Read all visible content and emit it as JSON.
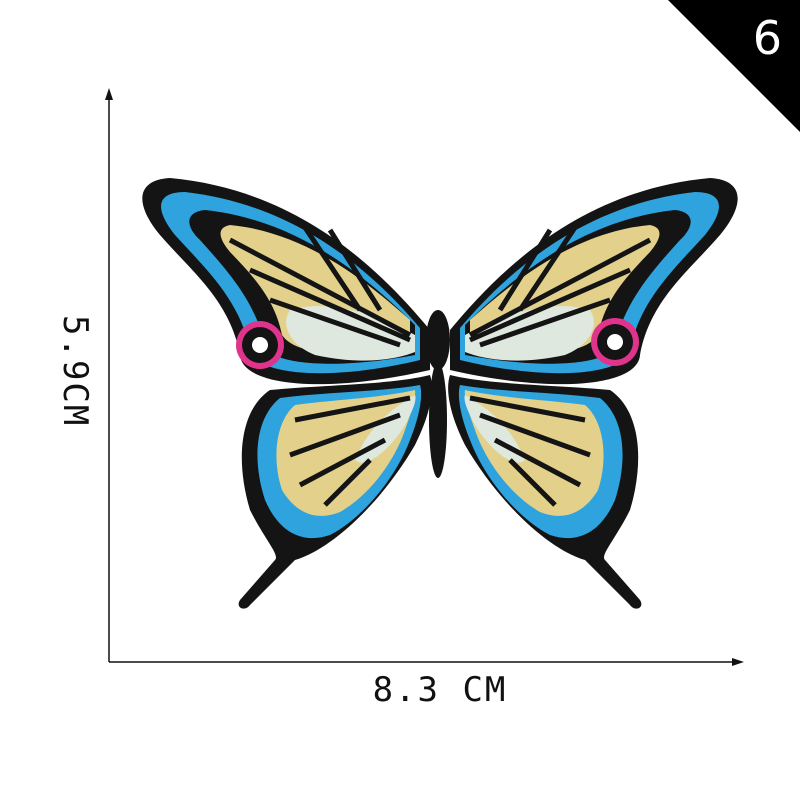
{
  "badge": {
    "number": "6"
  },
  "dimensions": {
    "height_label": "5.9CM",
    "width_label": "8.3 CM"
  },
  "colors": {
    "outline": "#141414",
    "blue": "#2ea3dd",
    "yellow": "#e3d08a",
    "pale": "#dfe8df",
    "ring": "#e0338c"
  }
}
